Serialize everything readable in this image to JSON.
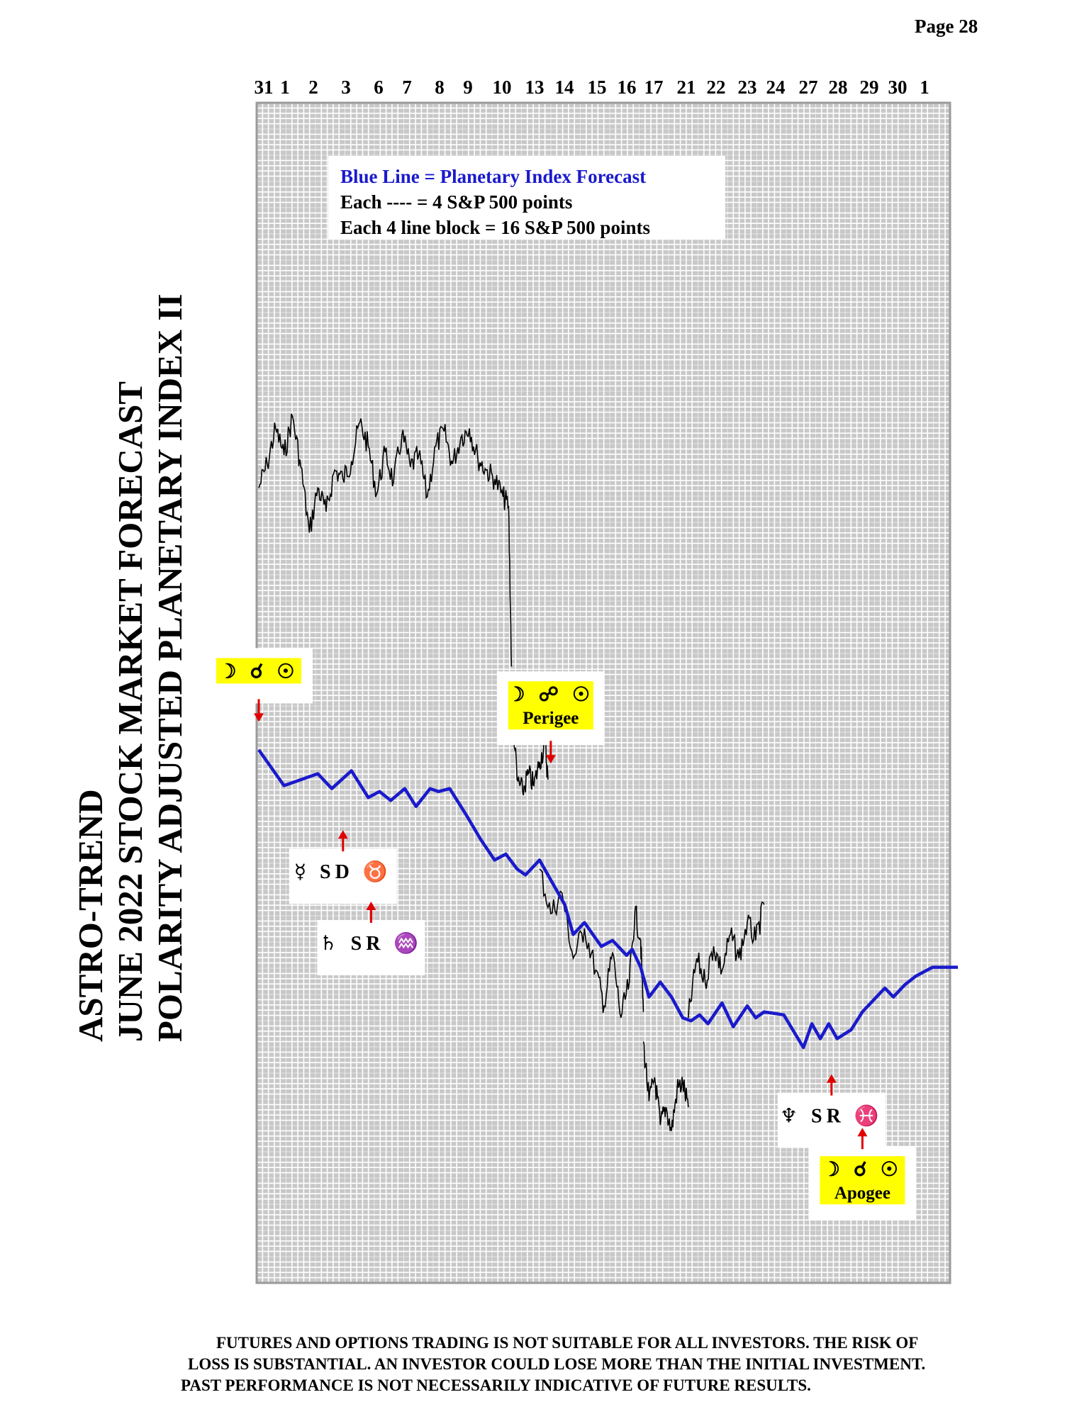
{
  "page": {
    "number_label": "Page  28"
  },
  "title": {
    "line1": "ASTRO-TREND",
    "line2": "JUNE 2022  STOCK MARKET FORECAST",
    "line3": "POLARITY ADJUSTED PLANETARY INDEX II"
  },
  "disclaimer": {
    "line1": "FUTURES AND OPTIONS TRADING IS NOT SUITABLE FOR ALL INVESTORS.  THE RISK OF",
    "line2": "LOSS IS SUBSTANTIAL.  AN INVESTOR COULD LOSE MORE THAN THE INITIAL INVESTMENT.",
    "line3": "PAST PERFORMANCE IS NOT NECESSARILY INDICATIVE OF FUTURE RESULTS."
  },
  "chart_data": {
    "type": "line",
    "title": "",
    "xlabel": "",
    "ylabel": "",
    "grid": true,
    "legend": {
      "line1": "Blue Line = Planetary Index Forecast",
      "line2": "Each ---- =  4 S&P 500 points",
      "line3": "Each 4 line block =  16  S&P 500 points"
    },
    "date_labels": [
      "31",
      "1",
      "2",
      "3",
      "6",
      "7",
      "8",
      "9",
      "10",
      "13",
      "14",
      "15",
      "16",
      "17",
      "21",
      "22",
      "23",
      "24",
      "27",
      "28",
      "29",
      "30",
      "1"
    ],
    "colors": {
      "forecast": "#1a1acc",
      "market": "#000000",
      "arrow": "#e00000",
      "highlight": "#ffff00",
      "grid_line": "#ffffff",
      "grid_bg": "#c8c8c8"
    },
    "series": [
      {
        "name": "Blue Line = Planetary Index Forecast",
        "kind": "forecast",
        "x": [
          0,
          0.9,
          2.1,
          2.6,
          3.3,
          3.9,
          4.3,
          4.7,
          5.2,
          5.6,
          6.1,
          6.4,
          6.8,
          7.4,
          7.9,
          8.4,
          8.8,
          9.2,
          9.5,
          10.0,
          10.9,
          11.2,
          11.6,
          12.2,
          12.6,
          13.1,
          13.3,
          13.6,
          13.9,
          14.3,
          14.7,
          15.1,
          15.4,
          15.7,
          16.0,
          16.5,
          16.9,
          17.4,
          17.7,
          18.0,
          18.7,
          19.4,
          19.7,
          20.0,
          20.3,
          20.6,
          21.1,
          21.5,
          21.7,
          22.3,
          22.6,
          23.0,
          23.4,
          23.6,
          24.0,
          24.4,
          24.9
        ],
        "y": [
          0,
          -12,
          -8,
          -13,
          -7,
          -16,
          -14,
          -17,
          -13,
          -19,
          -13,
          -14,
          -13,
          -22,
          -30,
          -37,
          -35,
          -40,
          -42,
          -37,
          -52,
          -62,
          -58,
          -66,
          -64,
          -69,
          -67,
          -73,
          -83,
          -78,
          -83,
          -90,
          -91,
          -89,
          -92,
          -85,
          -93,
          -86,
          -90,
          -88,
          -89,
          -100,
          -92,
          -97,
          -92,
          -97,
          -94,
          -88,
          -86,
          -80,
          -83,
          -79,
          -76,
          -75,
          -73,
          -73,
          -73
        ]
      },
      {
        "name": "",
        "kind": "market",
        "segments": [
          {
            "x": [
              0,
              0.3,
              0.6,
              0.9,
              1.2,
              1.5,
              1.8,
              2.1,
              2.4,
              2.7,
              3.0,
              3.3,
              3.6,
              3.9,
              4.2,
              4.5,
              4.8,
              5.1,
              5.4,
              5.7,
              6.0,
              6.3,
              6.6,
              6.9,
              7.2,
              7.5,
              7.8,
              8.1,
              8.4,
              8.7,
              8.9,
              9.0
            ],
            "y": [
              88,
              96,
              108,
              99,
              112,
              95,
              73,
              88,
              80,
              94,
              91,
              97,
              110,
              102,
              86,
              100,
              90,
              106,
              95,
              99,
              85,
              102,
              107,
              96,
              105,
              108,
              98,
              94,
              91,
              85,
              82,
              28
            ]
          },
          {
            "x": [
              9.0,
              9.2,
              9.4,
              9.6,
              9.8,
              10.0,
              10.2,
              10.3
            ],
            "y": [
              18,
              -10,
              -14,
              -8,
              -12,
              -4,
              2,
              -10
            ]
          },
          {
            "x": [
              10.0,
              10.4,
              10.8,
              11.2,
              11.6,
              12.0,
              12.3,
              12.6,
              12.9,
              13.2,
              13.4,
              13.6,
              13.7
            ],
            "y": [
              -40,
              -55,
              -48,
              -70,
              -60,
              -74,
              -86,
              -68,
              -90,
              -78,
              -54,
              -64,
              -88
            ]
          },
          {
            "x": [
              13.7,
              13.9,
              14.1,
              14.3,
              14.5,
              14.7,
              14.9,
              15.1,
              15.3
            ],
            "y": [
              -98,
              -118,
              -110,
              -126,
              -120,
              -128,
              -114,
              -112,
              -120
            ]
          },
          {
            "x": [
              15.3,
              15.6,
              15.9,
              16.2,
              16.5,
              16.8,
              17.1,
              17.4,
              17.7,
              18.0
            ],
            "y": [
              -90,
              -70,
              -78,
              -66,
              -74,
              -62,
              -70,
              -58,
              -64,
              -52
            ]
          }
        ]
      }
    ],
    "annotations": [
      {
        "id": "moon-conj-sun",
        "glyphs": "☽ ☌ ☉",
        "sub": "",
        "arrow": "down",
        "x": 0,
        "y": 8
      },
      {
        "id": "mercury-direct-taurus",
        "glyphs": "☿ SD ♉",
        "sub": "",
        "arrow": "up",
        "x": 3.0,
        "y": -26
      },
      {
        "id": "saturn-retro-aquarius",
        "glyphs": "♄ SR ♒",
        "sub": "",
        "arrow": "up",
        "x": 4.0,
        "y": -50
      },
      {
        "id": "moon-opp-sun-perigee",
        "glyphs": "☽ ☍ ☉",
        "sub": "Perigee",
        "arrow": "down",
        "x": 10.4,
        "y": -6
      },
      {
        "id": "neptune-retro-pisces",
        "glyphs": "♆ SR ♓",
        "sub": "",
        "arrow": "up",
        "x": 20.4,
        "y": -108
      },
      {
        "id": "moon-conj-sun-apogee",
        "glyphs": "☽ ☌ ☉",
        "sub": "Apogee",
        "arrow": "up",
        "x": 21.5,
        "y": -126
      }
    ]
  }
}
